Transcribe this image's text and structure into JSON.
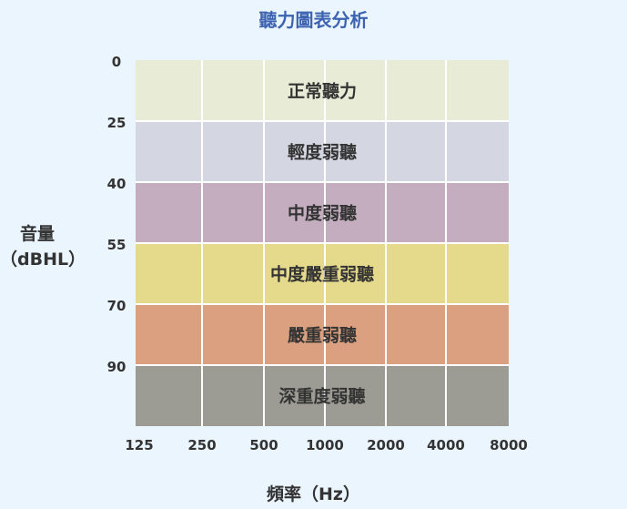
{
  "chart_data": {
    "type": "heatmap",
    "title": "聽力圖表分析",
    "ylabel_line1": "音量",
    "ylabel_line2": "（dBHL）",
    "xlabel": "頻率（Hz）",
    "x_ticks": [
      "125",
      "250",
      "500",
      "1000",
      "2000",
      "4000",
      "8000"
    ],
    "y_ticks": [
      "0",
      "25",
      "40",
      "55",
      "70",
      "90"
    ],
    "bands": [
      {
        "label": "正常聽力",
        "from": "0",
        "to": "25",
        "color": "#e8ecd6"
      },
      {
        "label": "輕度弱聽",
        "from": "25",
        "to": "40",
        "color": "#d4d7e2"
      },
      {
        "label": "中度弱聽",
        "from": "40",
        "to": "55",
        "color": "#c3adbe"
      },
      {
        "label": "中度嚴重弱聽",
        "from": "55",
        "to": "70",
        "color": "#e5d98c"
      },
      {
        "label": "嚴重弱聽",
        "from": "70",
        "to": "90",
        "color": "#daa07f"
      },
      {
        "label": "深重度弱聽",
        "from": "90",
        "to": "",
        "color": "#9c9c95"
      }
    ],
    "grid": true
  }
}
